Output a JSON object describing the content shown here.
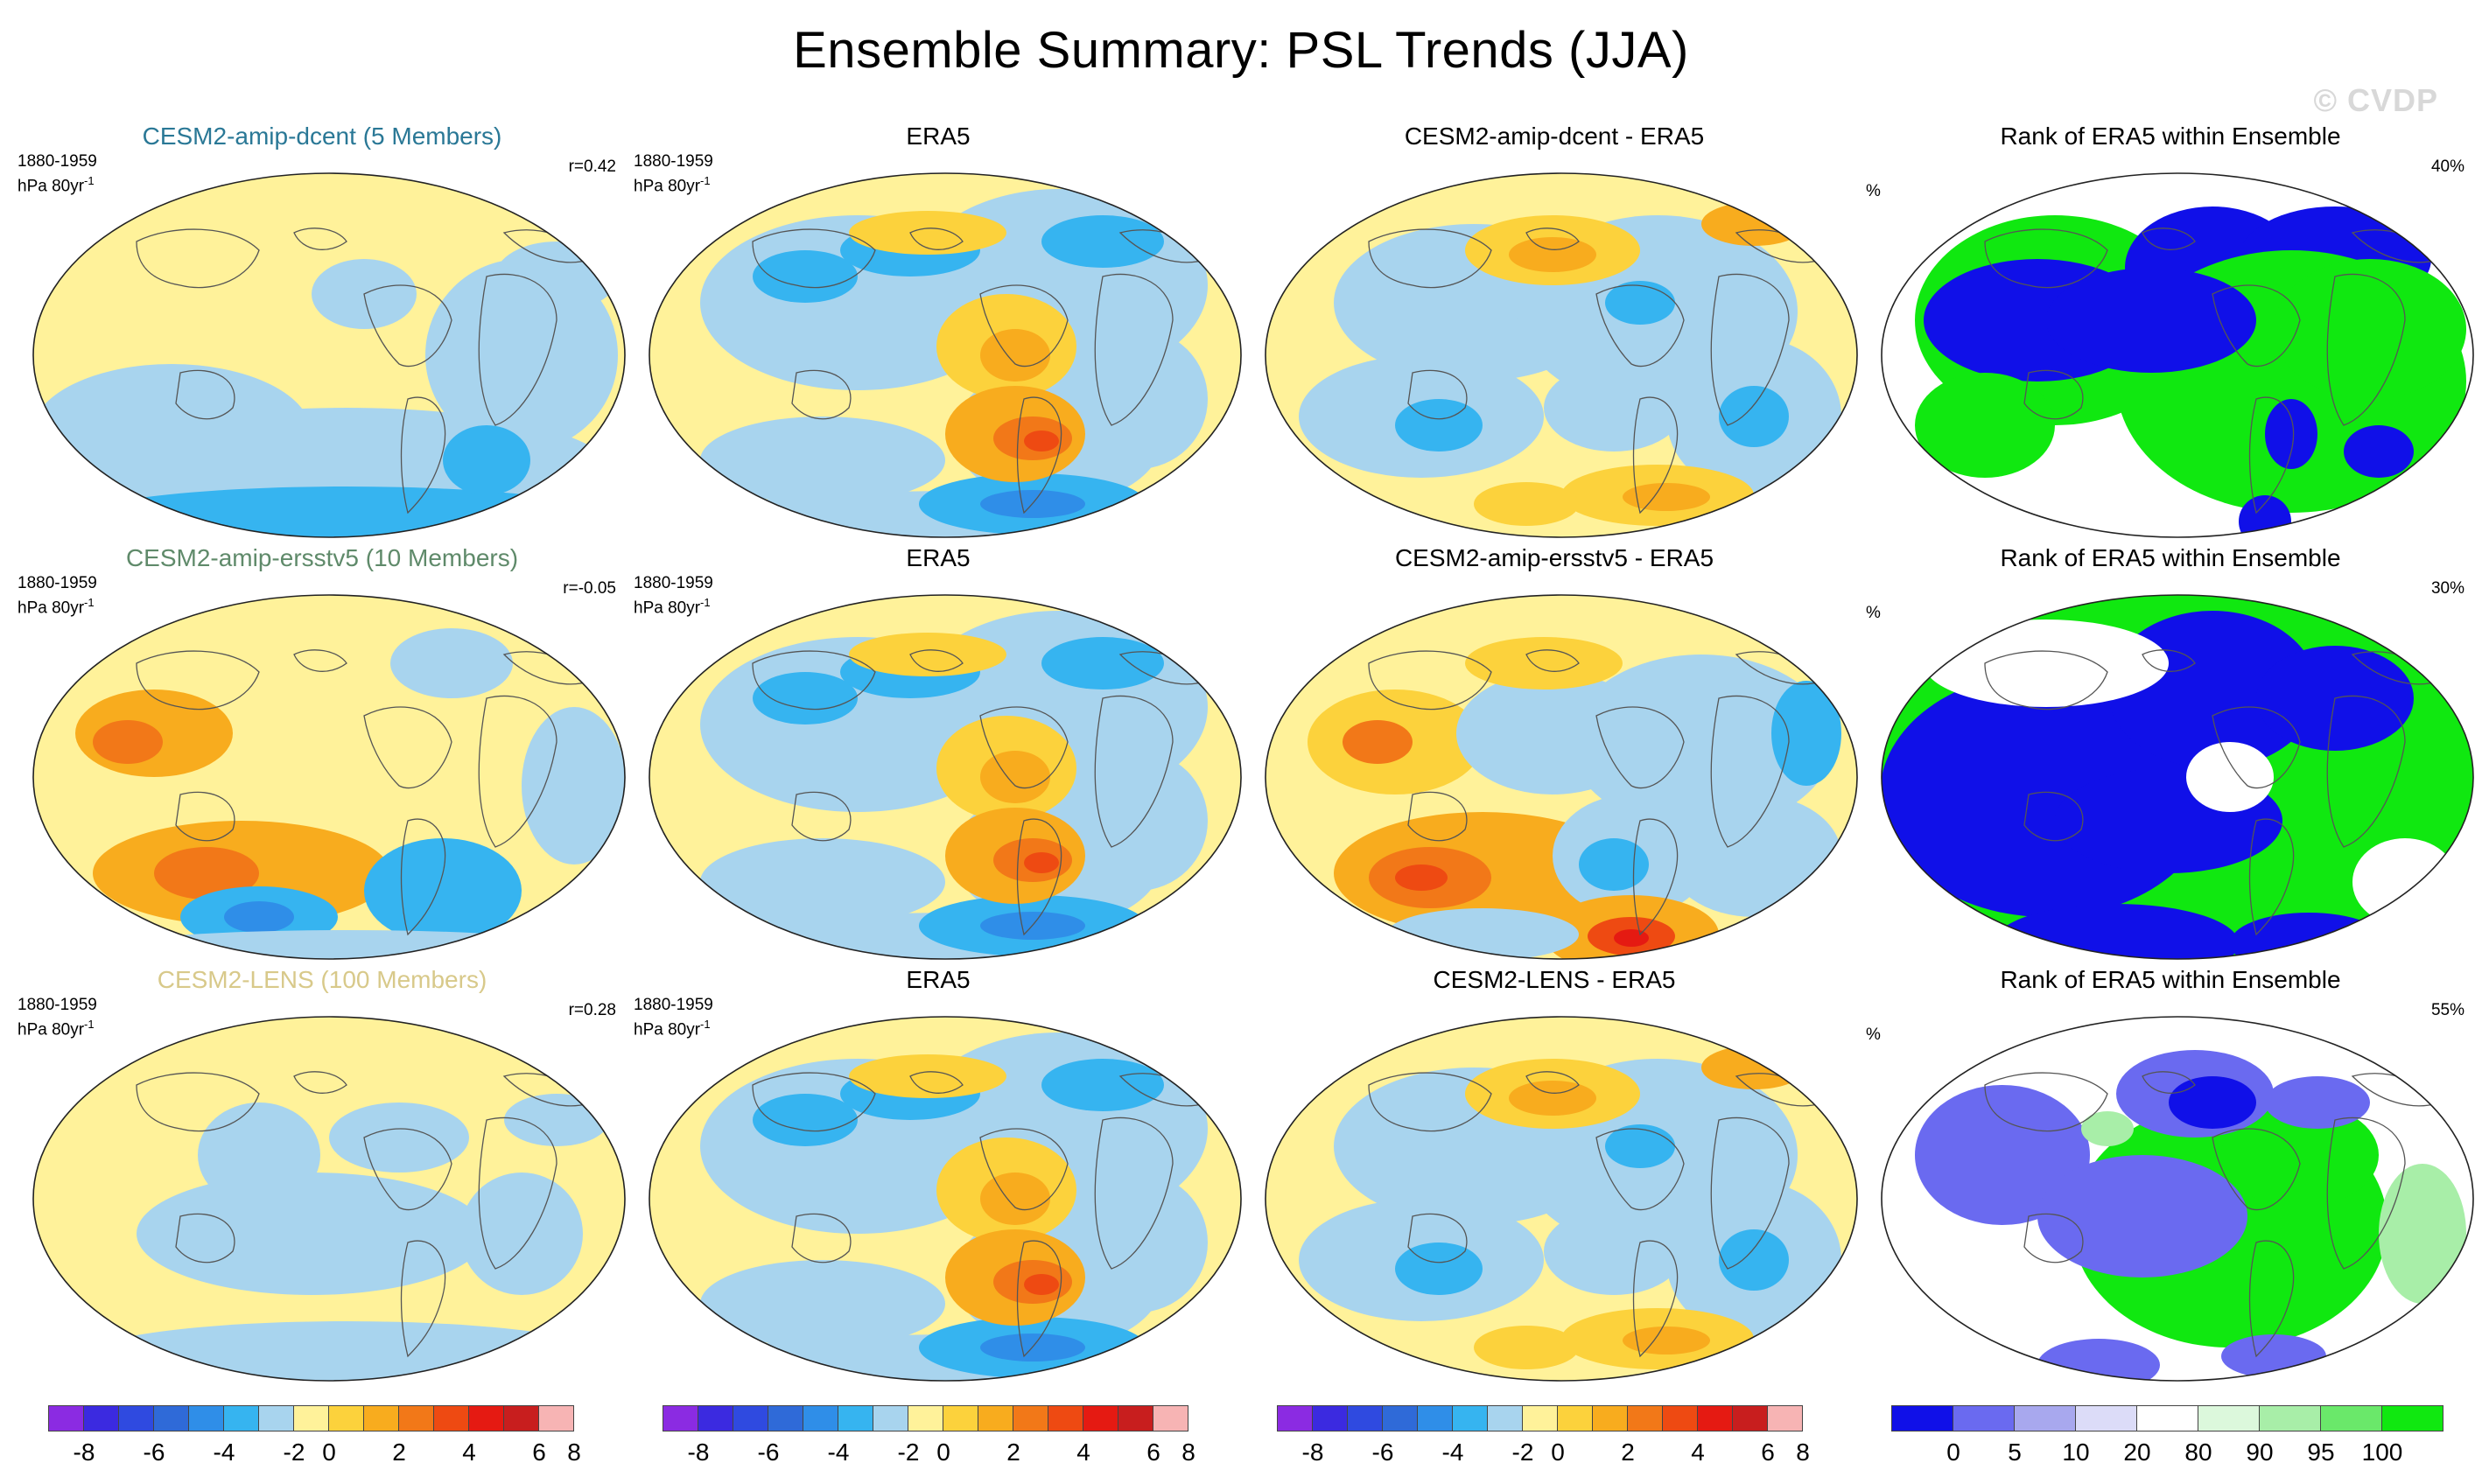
{
  "title": "Ensemble Summary: PSL Trends (JJA)",
  "watermark": "© CVDP",
  "period": "1880-1959",
  "units_prefix": "hPa 80yr",
  "units_exp": "-1",
  "percent_sign": "%",
  "rows": [
    {
      "model_title": "CESM2-amip-dcent (5 Members)",
      "model_color": "#2a7896",
      "r": "r=0.42",
      "obs_title": "ERA5",
      "diff_title": "CESM2-amip-dcent - ERA5",
      "rank_title": "Rank of ERA5 within Ensemble",
      "rank_pct": "40%"
    },
    {
      "model_title": "CESM2-amip-ersstv5 (10 Members)",
      "model_color": "#5f8a6a",
      "r": "r=-0.05",
      "obs_title": "ERA5",
      "diff_title": "CESM2-amip-ersstv5 - ERA5",
      "rank_title": "Rank of ERA5 within Ensemble",
      "rank_pct": "30%"
    },
    {
      "model_title": "CESM2-LENS (100 Members)",
      "model_color": "#d8c98a",
      "r": "r=0.28",
      "obs_title": "ERA5",
      "diff_title": "CESM2-LENS - ERA5",
      "rank_title": "Rank of ERA5 within Ensemble",
      "rank_pct": "55%"
    }
  ],
  "trend_colorbar": {
    "colors": [
      "#8b2be2",
      "#3b2ae0",
      "#2f4ae0",
      "#2f6ad8",
      "#2f8ee8",
      "#36b4f0",
      "#a8d4ee",
      "#fff29a",
      "#fcd23c",
      "#f8ac1e",
      "#f27818",
      "#ee4a12",
      "#e51a12",
      "#c81e1e",
      "#f7b4b4"
    ],
    "labels": [
      "-8",
      "-6",
      "-4",
      "-2",
      "0",
      "2",
      "4",
      "6",
      "8"
    ]
  },
  "rank_colorbar": {
    "colors": [
      "#1010e8",
      "#6a6af0",
      "#a8a8ee",
      "#dcdcf8",
      "#ffffff",
      "#dcf8dc",
      "#a8eea8",
      "#6ae86a",
      "#10e810"
    ],
    "labels": [
      "0",
      "5",
      "10",
      "20",
      "80",
      "90",
      "95",
      "100"
    ]
  }
}
